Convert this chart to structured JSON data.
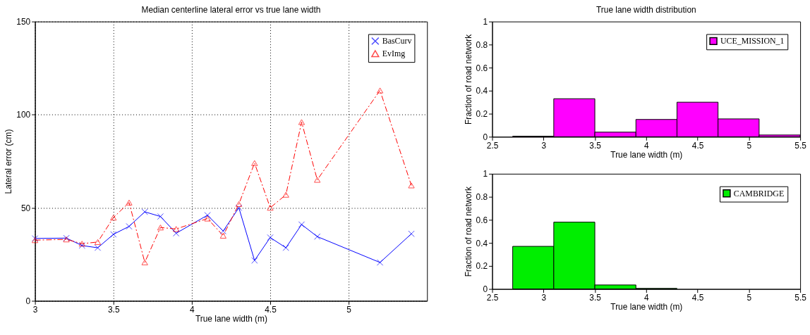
{
  "chart_data": [
    {
      "type": "line",
      "title": "Median centerline lateral error vs true lane width",
      "xlabel": "True lane width (m)",
      "ylabel": "Lateral error (cm)",
      "x": [
        3.0,
        3.2,
        3.3,
        3.4,
        3.5,
        3.6,
        3.7,
        3.8,
        3.9,
        4.1,
        4.2,
        4.3,
        4.4,
        4.5,
        4.6,
        4.7,
        4.8,
        5.2,
        5.4
      ],
      "series": [
        {
          "name": "BasCurv",
          "color": "#0000ff",
          "marker": "cross",
          "line_style": "solid",
          "values": [
            33.5,
            33.7,
            29.7,
            28.5,
            35.7,
            40,
            47.8,
            45.3,
            36.3,
            46,
            37.5,
            50,
            21.7,
            34,
            28.5,
            41,
            34.5,
            20.6,
            36
          ]
        },
        {
          "name": "EvImg",
          "color": "#ff0000",
          "marker": "triangle",
          "line_style": "dashed",
          "values": [
            32.6,
            33,
            30.7,
            31.6,
            44.7,
            52.8,
            20.7,
            39.4,
            38.6,
            44.2,
            35,
            52,
            74,
            50,
            57,
            96,
            65,
            113,
            62
          ]
        }
      ],
      "xlim": [
        3,
        5.5
      ],
      "xticks": [
        3,
        3.5,
        4,
        4.5,
        5
      ],
      "ylim": [
        0,
        150
      ],
      "yticks": [
        0,
        50,
        100,
        150
      ],
      "grid": true,
      "legend": "top right"
    },
    {
      "type": "histogram",
      "title": "True lane width distribution",
      "xlabel": "True lane width (m)",
      "ylabel": "Fraction of road network",
      "bins": [
        2.7,
        3.1,
        3.5,
        3.9,
        4.3,
        4.7,
        5.1,
        5.5
      ],
      "series": [
        {
          "name": "UCE_MISSION_1",
          "color": "#ff00ff",
          "values": [
            0.005,
            0.33,
            0.04,
            0.15,
            0.3,
            0.155,
            0.015
          ]
        }
      ],
      "xlim": [
        2.5,
        5.5
      ],
      "xticks": [
        2.5,
        3,
        3.5,
        4,
        4.5,
        5,
        5.5
      ],
      "ylim": [
        0,
        1
      ],
      "yticks": [
        0,
        0.2,
        0.4,
        0.6,
        0.8,
        1
      ],
      "grid": false,
      "legend": "top right"
    },
    {
      "type": "histogram",
      "xlabel": "True lane width (m)",
      "ylabel": "Fraction of road network",
      "bins": [
        2.7,
        3.1,
        3.5,
        3.9,
        4.3,
        4.7,
        5.1,
        5.5
      ],
      "series": [
        {
          "name": "CAMBRIDGE",
          "color": "#00ee00",
          "values": [
            0.37,
            0.58,
            0.035,
            0.005,
            null,
            null,
            null
          ]
        }
      ],
      "xlim": [
        2.5,
        5.5
      ],
      "xticks": [
        2.5,
        3,
        3.5,
        4,
        4.5,
        5,
        5.5
      ],
      "ylim": [
        0,
        1
      ],
      "yticks": [
        0,
        0.2,
        0.4,
        0.6,
        0.8,
        1
      ],
      "grid": false,
      "legend": "top right"
    }
  ]
}
